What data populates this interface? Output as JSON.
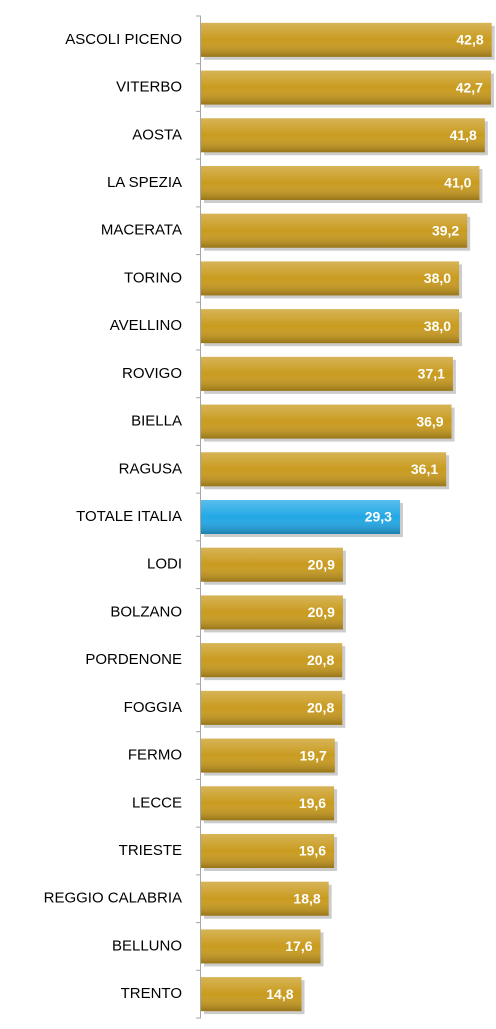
{
  "chart_data": {
    "type": "barh",
    "categories": [
      "ASCOLI PICENO",
      "VITERBO",
      "AOSTA",
      "LA SPEZIA",
      "MACERATA",
      "TORINO",
      "AVELLINO",
      "ROVIGO",
      "BIELLA",
      "RAGUSA",
      "TOTALE ITALIA",
      "LODI",
      "BOLZANO",
      "PORDENONE",
      "FOGGIA",
      "FERMO",
      "LECCE",
      "TRIESTE",
      "REGGIO CALABRIA",
      "BELLUNO",
      "TRENTO"
    ],
    "values": [
      42.8,
      42.7,
      41.8,
      41.0,
      39.2,
      38.0,
      38.0,
      37.1,
      36.9,
      36.1,
      29.3,
      20.9,
      20.9,
      20.8,
      20.8,
      19.7,
      19.6,
      19.6,
      18.8,
      17.6,
      14.8
    ],
    "value_labels": [
      "42,8",
      "42,7",
      "41,8",
      "41,0",
      "39,2",
      "38,0",
      "38,0",
      "37,1",
      "36,9",
      "36,1",
      "29,3",
      "20,9",
      "20,9",
      "20,8",
      "20,8",
      "19,7",
      "19,6",
      "19,6",
      "18,8",
      "17,6",
      "14,8"
    ],
    "colors": [
      "#c99b1f",
      "#c99b1f",
      "#c99b1f",
      "#c99b1f",
      "#c99b1f",
      "#c99b1f",
      "#c99b1f",
      "#c99b1f",
      "#c99b1f",
      "#c99b1f",
      "#22a8e6",
      "#c99b1f",
      "#c99b1f",
      "#c99b1f",
      "#c99b1f",
      "#c99b1f",
      "#c99b1f",
      "#c99b1f",
      "#c99b1f",
      "#c99b1f",
      "#c99b1f"
    ],
    "xlim": [
      0,
      43
    ]
  }
}
